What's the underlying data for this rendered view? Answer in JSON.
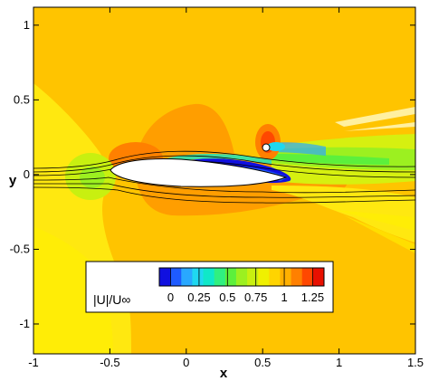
{
  "chart_data": {
    "type": "contour",
    "title": "",
    "xlabel": "x",
    "ylabel": "y",
    "xlim": [
      -1,
      1.5
    ],
    "ylim": [
      -1.2,
      1.12
    ],
    "x_ticks": [
      -1,
      -0.5,
      0,
      0.5,
      1,
      1.5
    ],
    "x_tick_labels": [
      "-1",
      "-0.5",
      "0",
      "0.5",
      "1",
      "1.5"
    ],
    "y_ticks": [
      -1,
      -0.5,
      0,
      0.5,
      1
    ],
    "y_tick_labels": [
      "-1",
      "-0.5",
      "0",
      "0.5",
      "1"
    ],
    "field": "velocity magnitude",
    "colorbar": {
      "label": "|U|/U∞",
      "range": [
        -0.1,
        1.35
      ],
      "ticks": [
        0,
        0.25,
        0.5,
        0.75,
        1,
        1.25
      ],
      "tick_labels": [
        "0",
        "0.25",
        "0.5",
        "0.75",
        "1",
        "1.25"
      ],
      "colors": [
        "#1010e0",
        "#1e5bff",
        "#29a8ff",
        "#1fd8f0",
        "#10e8c8",
        "#30f080",
        "#5cf03c",
        "#9cf020",
        "#c8f010",
        "#f0f000",
        "#ffd400",
        "#ffb000",
        "#ff8000",
        "#ff4800",
        "#e81000"
      ]
    },
    "airfoil": {
      "leading_edge": [
        -0.5,
        0.02
      ],
      "trailing_edge": [
        0.6,
        -0.02
      ]
    },
    "cylinder": {
      "center": [
        0.52,
        0.21
      ],
      "radius": 0.02
    },
    "freestream_level": 1.0
  }
}
